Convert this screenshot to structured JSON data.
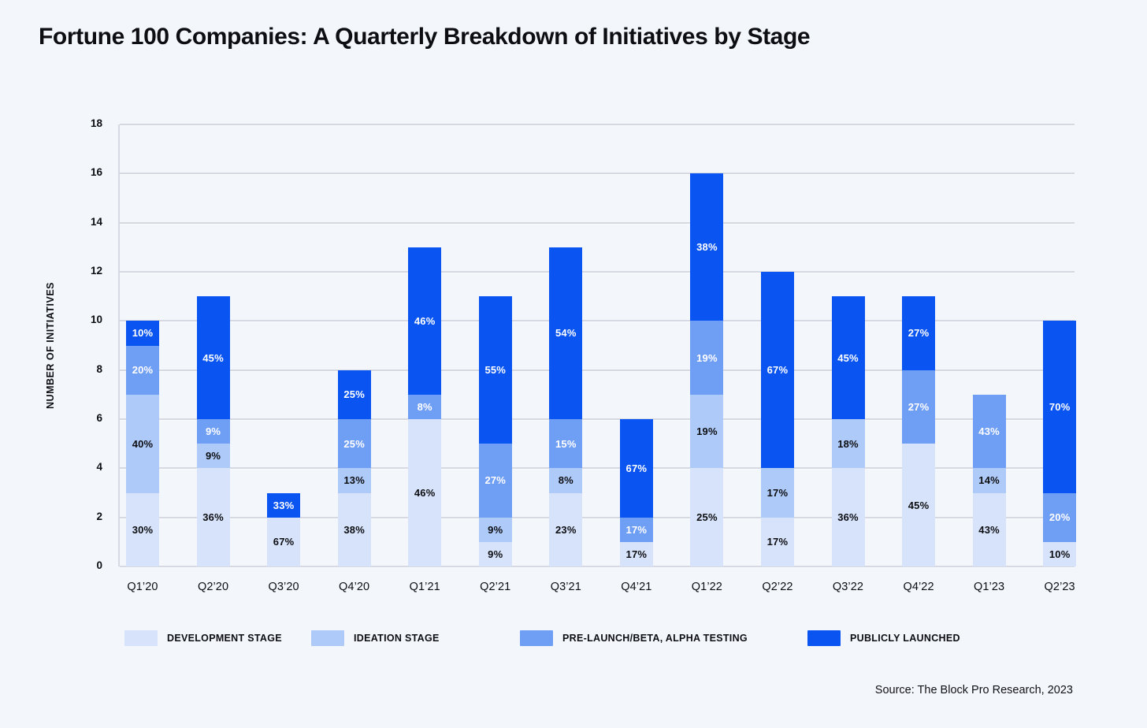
{
  "title": "Fortune 100 Companies: A Quarterly Breakdown of Initiatives by Stage",
  "source": "Source: The Block Pro Research, 2023",
  "colors": {
    "background": "#f3f6fb",
    "development": "#d7e3fa",
    "ideation": "#aecaf8",
    "prelaunch": "#6f9ef5",
    "launched": "#0a55f1",
    "gridline": "#d6d9e1",
    "text_dark": "#0d0e12",
    "text_light": "#ffffff"
  },
  "legend": [
    {
      "key": "development",
      "label": "DEVELOPMENT STAGE"
    },
    {
      "key": "ideation",
      "label": "IDEATION STAGE"
    },
    {
      "key": "prelaunch",
      "label": "PRE-LAUNCH/BETA, ALPHA TESTING"
    },
    {
      "key": "launched",
      "label": "PUBLICLY LAUNCHED"
    }
  ],
  "chart_data": {
    "type": "bar",
    "subtype": "stacked",
    "title": "Fortune 100 Companies: A Quarterly Breakdown of Initiatives by Stage",
    "xlabel": "",
    "ylabel": "NUMBER OF INITIATIVES",
    "ylim": [
      0,
      18
    ],
    "ytick_step": 2,
    "grid": "horizontal",
    "legend_position": "bottom",
    "categories": [
      "Q1’20",
      "Q2’20",
      "Q3’20",
      "Q4’20",
      "Q1’21",
      "Q2’21",
      "Q3’21",
      "Q4’21",
      "Q1’22",
      "Q2’22",
      "Q3’22",
      "Q4’22",
      "Q1’23",
      "Q2’23"
    ],
    "totals": [
      10,
      11,
      3,
      8,
      13,
      11,
      13,
      6,
      16,
      12,
      11,
      11,
      7,
      10
    ],
    "series": [
      {
        "name": "DEVELOPMENT STAGE",
        "key": "development",
        "values": [
          3,
          4,
          2,
          3,
          6,
          1,
          3,
          1,
          4,
          2,
          4,
          5,
          3,
          1
        ],
        "labels": [
          "30%",
          "36%",
          "67%",
          "38%",
          "46%",
          "9%",
          "23%",
          "17%",
          "25%",
          "17%",
          "36%",
          "45%",
          "43%",
          "10%"
        ]
      },
      {
        "name": "IDEATION STAGE",
        "key": "ideation",
        "values": [
          4,
          1,
          0,
          1,
          0,
          1,
          1,
          0,
          3,
          2,
          2,
          0,
          1,
          0
        ],
        "labels": [
          "40%",
          "9%",
          "",
          "13%",
          "",
          "9%",
          "8%",
          "",
          "19%",
          "17%",
          "18%",
          "",
          "14%",
          ""
        ]
      },
      {
        "name": "PRE-LAUNCH/BETA, ALPHA TESTING",
        "key": "prelaunch",
        "values": [
          2,
          1,
          0,
          2,
          1,
          3,
          2,
          1,
          3,
          0,
          0,
          3,
          3,
          2
        ],
        "labels": [
          "20%",
          "9%",
          "",
          "25%",
          "8%",
          "27%",
          "15%",
          "17%",
          "19%",
          "",
          "",
          "27%",
          "43%",
          "20%"
        ]
      },
      {
        "name": "PUBLICLY LAUNCHED",
        "key": "launched",
        "values": [
          1,
          5,
          1,
          2,
          6,
          6,
          7,
          4,
          6,
          8,
          5,
          3,
          0,
          7
        ],
        "labels": [
          "10%",
          "45%",
          "33%",
          "25%",
          "46%",
          "55%",
          "54%",
          "67%",
          "38%",
          "67%",
          "45%",
          "27%",
          "",
          "70%"
        ]
      }
    ]
  }
}
